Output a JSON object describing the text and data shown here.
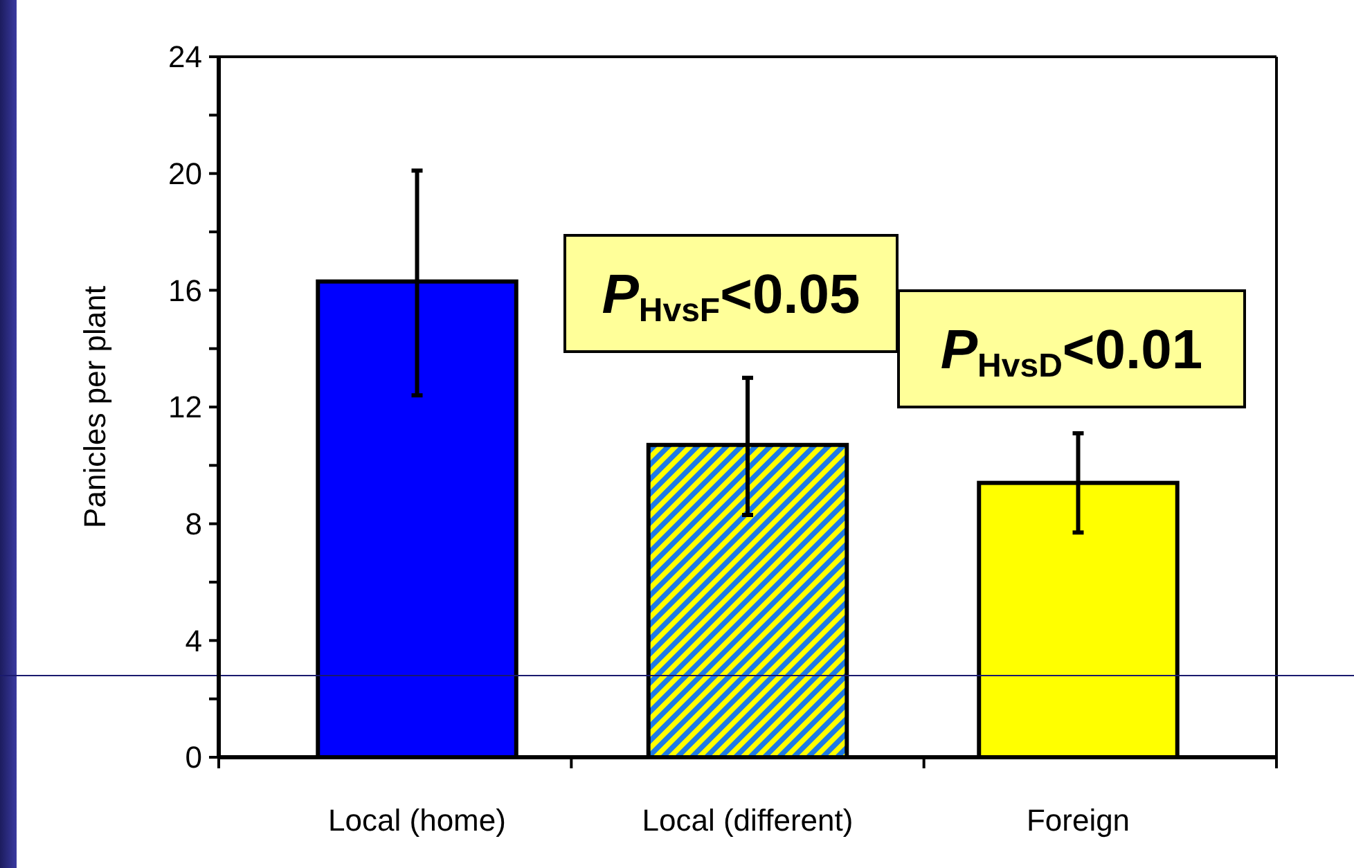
{
  "chart_data": {
    "type": "bar",
    "ylabel": "Panicles per plant",
    "categories": [
      "Local (home)",
      "Local (different)",
      "Foreign"
    ],
    "values": [
      16.3,
      10.7,
      9.4
    ],
    "errors": [
      [
        12.4,
        20.1
      ],
      [
        8.3,
        13.0
      ],
      [
        7.7,
        11.1
      ]
    ],
    "colors": [
      "#0000ff",
      "#1e7ae6",
      "#ffff00"
    ],
    "ylim": [
      0,
      24
    ],
    "yticks": [
      0,
      {
        "value": 2,
        "label": null
      },
      4,
      {
        "value": 6,
        "label": null
      },
      8,
      {
        "value": 10,
        "label": null
      },
      12,
      {
        "value": 14,
        "label": null
      },
      16,
      {
        "value": 18,
        "label": null
      },
      20,
      {
        "value": 22,
        "label": null
      },
      24
    ],
    "annotations": [
      "P$_{HvsF}$<0.05",
      "P$_{HvsD}$<0.01"
    ],
    "ref_lines": [
      {
        "axis": "y",
        "value": 2.8,
        "color": "#1a1a6e"
      }
    ]
  }
}
